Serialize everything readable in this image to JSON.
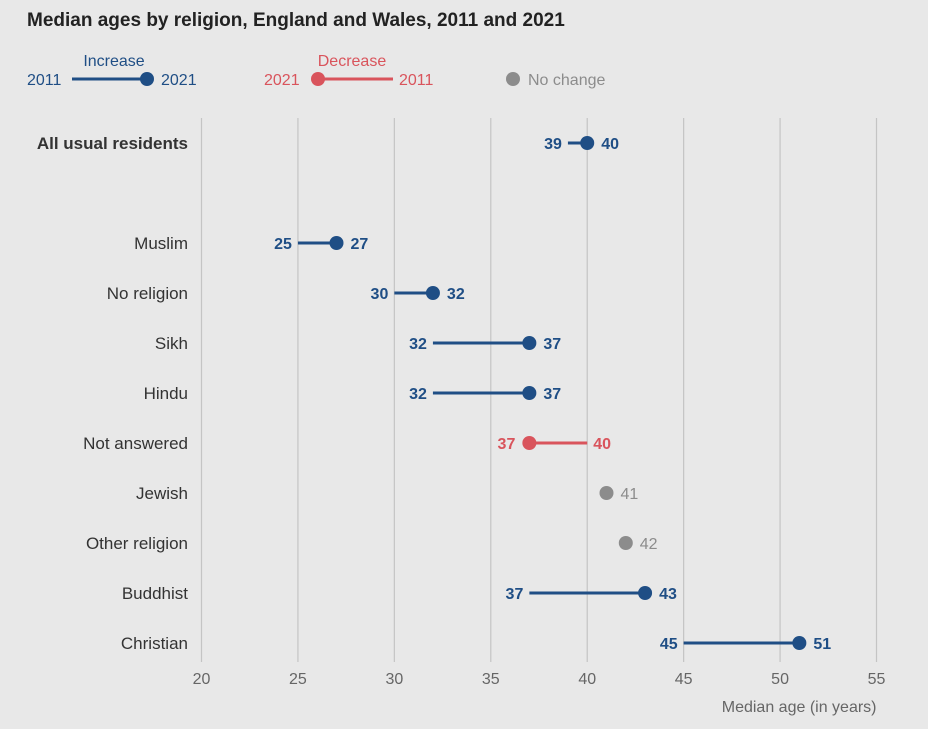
{
  "chart_data": {
    "type": "dumbbell",
    "title": "Median ages by religion, England and Wales, 2011 and 2021",
    "xlabel": "Median age (in years)",
    "xlim": [
      20,
      55
    ],
    "xticks": [
      20,
      25,
      30,
      35,
      40,
      45,
      50,
      55
    ],
    "grid": true,
    "legend": {
      "position": "top-left",
      "increase": {
        "title": "Increase",
        "start_label": "2011",
        "end_label": "2021"
      },
      "decrease": {
        "title": "Decrease",
        "start_label": "2021",
        "end_label": "2011"
      },
      "no_change": {
        "title": "No change"
      }
    },
    "colors": {
      "increase": "#1f4e85",
      "decrease": "#d9545c",
      "no_change": "#8c8c8c",
      "grid": "#c4c4c4",
      "text": "#333333",
      "axis_text": "#666666"
    },
    "rows": [
      {
        "category": "All usual residents",
        "y2011": 39,
        "y2021": 40,
        "label_2011": "39",
        "label_2021": "40",
        "bold": true
      },
      {
        "category": "Muslim",
        "y2011": 25,
        "y2021": 27,
        "label_2011": "25",
        "label_2021": "27"
      },
      {
        "category": "No religion",
        "y2011": 30,
        "y2021": 32,
        "label_2011": "30",
        "label_2021": "32"
      },
      {
        "category": "Sikh",
        "y2011": 32,
        "y2021": 37,
        "label_2011": "32",
        "label_2021": "37"
      },
      {
        "category": "Hindu",
        "y2011": 32,
        "y2021": 37,
        "label_2011": "32",
        "label_2021": "37"
      },
      {
        "category": "Not answered",
        "y2011": 40,
        "y2021": 37,
        "label_2011": "40",
        "label_2021": "37"
      },
      {
        "category": "Jewish",
        "y2011": 41,
        "y2021": 41,
        "label_2011": "41",
        "label_2021": "41"
      },
      {
        "category": "Other religion",
        "y2011": 42,
        "y2021": 42,
        "label_2011": "42",
        "label_2021": "42"
      },
      {
        "category": "Buddhist",
        "y2011": 37,
        "y2021": 43,
        "label_2011": "37",
        "label_2021": "43"
      },
      {
        "category": "Christian",
        "y2011": 45,
        "y2021": 51,
        "label_2011": "45",
        "label_2021": "51"
      }
    ]
  }
}
